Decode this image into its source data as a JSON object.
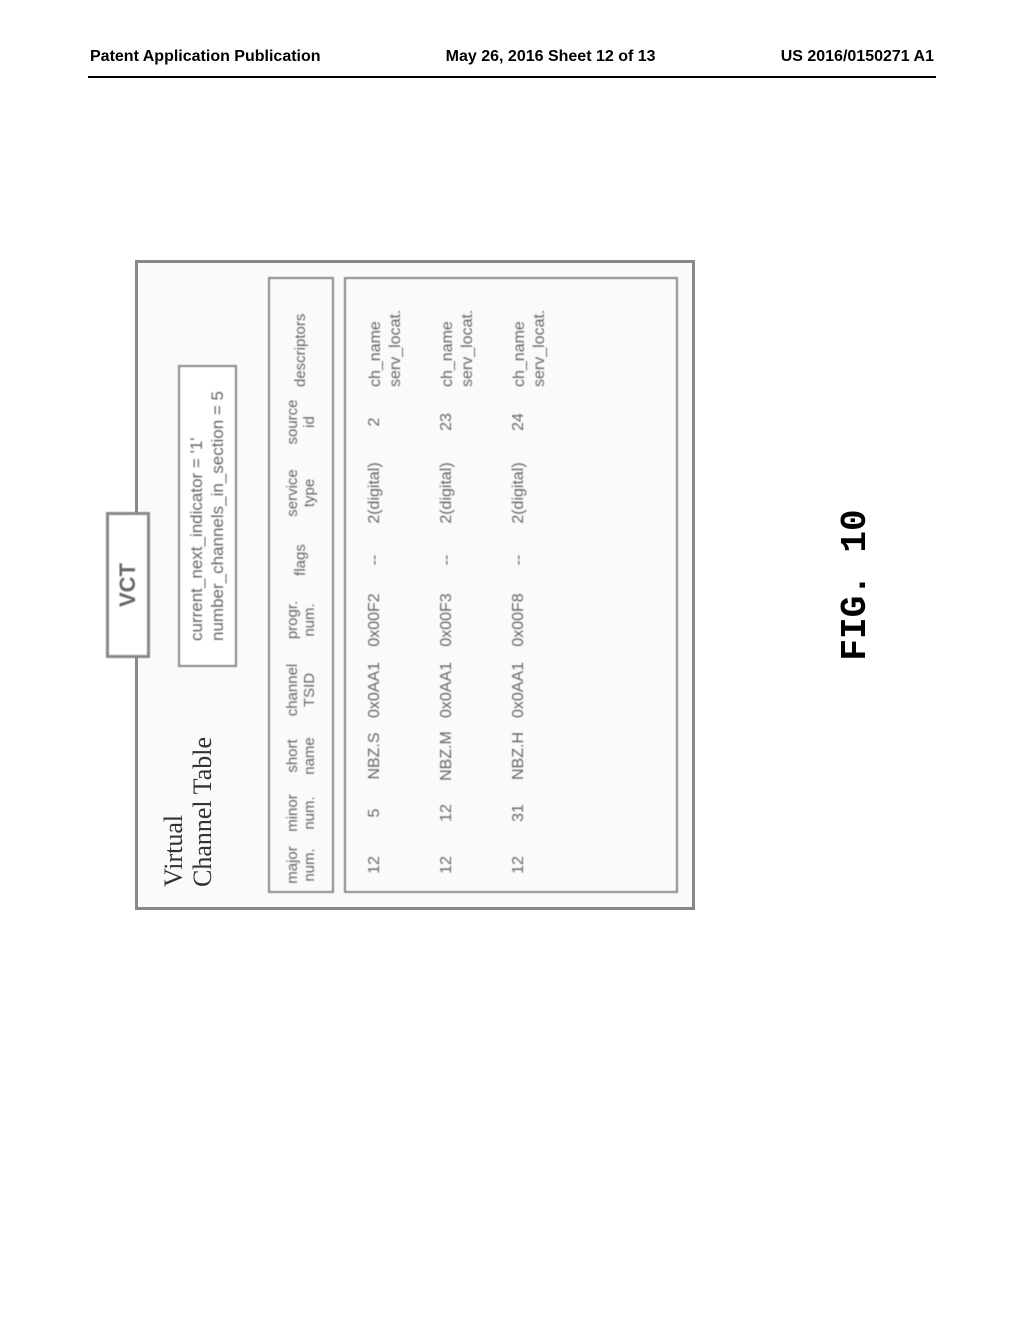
{
  "header": {
    "left": "Patent Application Publication",
    "center": "May 26, 2016  Sheet 12 of 13",
    "right": "US 2016/0150271 A1"
  },
  "vct": {
    "title": "VCT",
    "subtitle_line1": "Virtual",
    "subtitle_line2": "Channel Table",
    "params": {
      "line1": "current_next_indicator = '1'",
      "line2": "number_channels_in_section = 5"
    },
    "columns": {
      "major": [
        "major",
        "num."
      ],
      "minor": [
        "minor",
        "num."
      ],
      "short": [
        "short",
        "name"
      ],
      "tsid": [
        "channel",
        "TSID"
      ],
      "prog": [
        "progr.",
        "num."
      ],
      "flags": [
        "flags"
      ],
      "svctype": [
        "service",
        "type"
      ],
      "srcid": [
        "source",
        "id"
      ],
      "desc": [
        "descriptors"
      ]
    },
    "rows": [
      {
        "major": "12",
        "minor": "5",
        "short": "NBZ.S",
        "tsid": "0x0AA1",
        "prog": "0x00F2",
        "flags": "--",
        "svctype": "2(digital)",
        "srcid": "2",
        "desc1": "ch_name",
        "desc2": "serv_locat."
      },
      {
        "major": "12",
        "minor": "12",
        "short": "NBZ.M",
        "tsid": "0x0AA1",
        "prog": "0x00F3",
        "flags": "--",
        "svctype": "2(digital)",
        "srcid": "23",
        "desc1": "ch_name",
        "desc2": "serv_locat."
      },
      {
        "major": "12",
        "minor": "31",
        "short": "NBZ.H",
        "tsid": "0x0AA1",
        "prog": "0x00F8",
        "flags": "--",
        "svctype": "2(digital)",
        "srcid": "24",
        "desc1": "ch_name",
        "desc2": "serv_locat."
      }
    ]
  },
  "figure_label": "FIG. 10"
}
